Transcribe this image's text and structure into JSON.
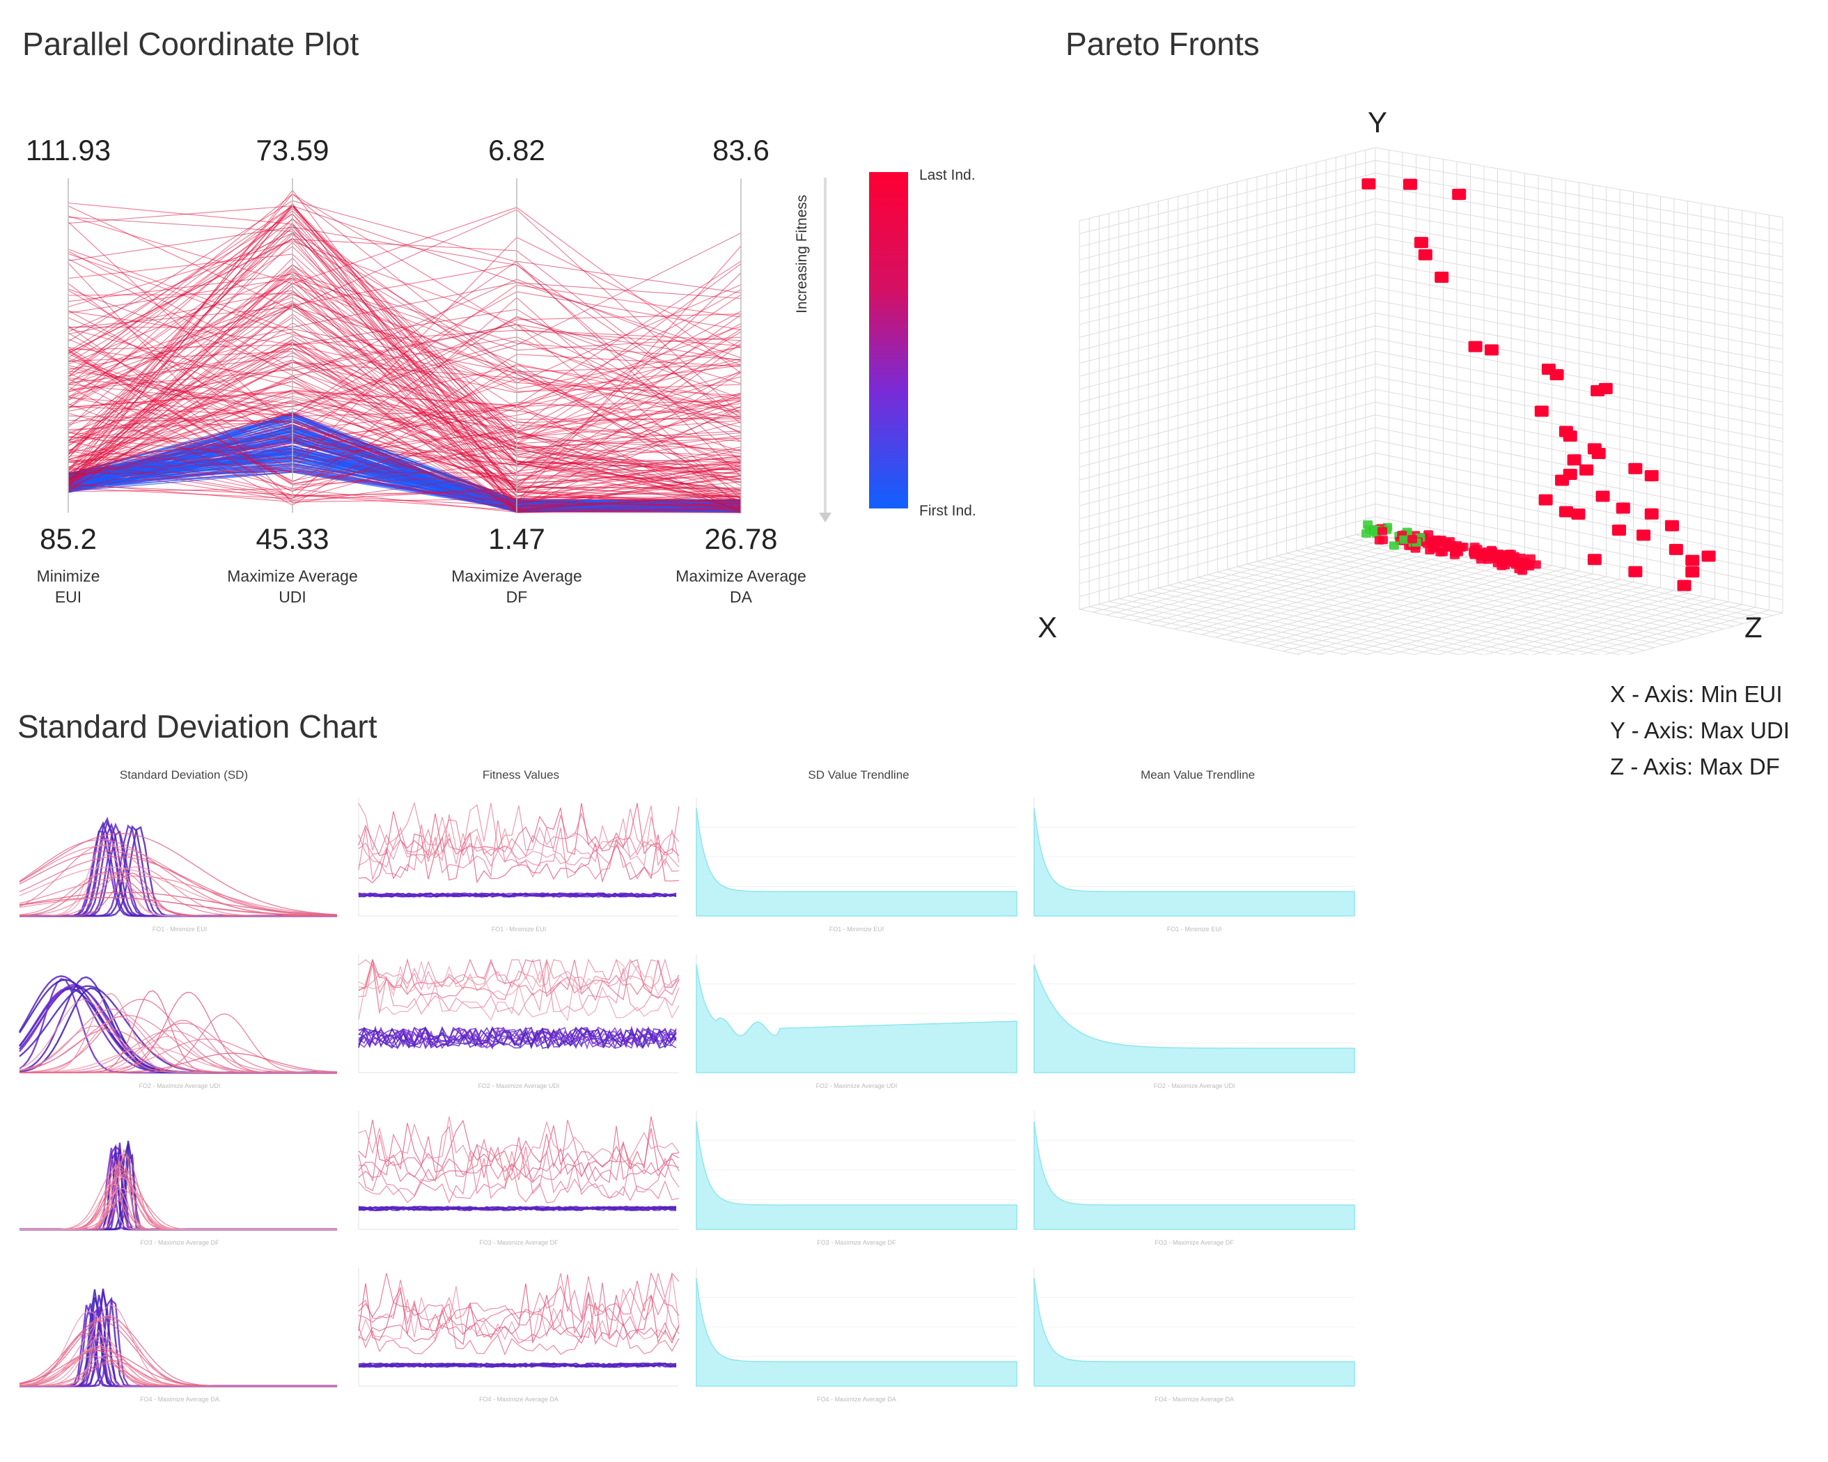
{
  "page": {
    "pcp_title": "Parallel Coordinate Plot",
    "pareto_title": "Pareto Fronts",
    "sd_title": "Standard Deviation Chart"
  },
  "colors": {
    "last": "#ff0033",
    "first": "#1060ff",
    "mid": "#7a2bd6",
    "cyan": "#bff3f7",
    "cyanLine": "#8fe6ef",
    "green": "#39d039"
  },
  "chart_data": [
    {
      "type": "line",
      "name": "parallel-coordinate",
      "title": "Parallel Coordinate Plot",
      "axes": [
        {
          "max": "111.93",
          "min": "85.2",
          "label_1": "Minimize",
          "label_2": "EUI"
        },
        {
          "max": "73.59",
          "min": "45.33",
          "label_1": "Maximize Average",
          "label_2": "UDI"
        },
        {
          "max": "6.82",
          "min": "1.47",
          "label_1": "Maximize Average",
          "label_2": "DF"
        },
        {
          "max": "83.6",
          "min": "26.78",
          "label_1": "Maximize Average",
          "label_2": "DA"
        }
      ],
      "colorbar": {
        "top_label": "Last Ind.",
        "bottom_label": "First Ind.",
        "arrow_label": "Increasing Fitness"
      }
    },
    {
      "type": "scatter",
      "name": "pareto-fronts",
      "title": "Pareto Fronts",
      "axis_labels": {
        "x": "X",
        "y": "Y",
        "z": "Z"
      },
      "legend": [
        "X - Axis: Min EUI",
        "Y - Axis: Max UDI",
        "Z - Axis: Max DF"
      ]
    },
    {
      "type": "line",
      "name": "standard-deviation-chart",
      "title": "Standard Deviation Chart",
      "column_titles": [
        "Standard Deviation (SD)",
        "Fitness Values",
        "SD Value Trendline",
        "Mean Value Trendline"
      ],
      "rows": [
        {
          "objective": "FO1 - Minimize EUI"
        },
        {
          "objective": "FO2 - Maximize Average UDI"
        },
        {
          "objective": "FO3 - Maximize Average DF"
        },
        {
          "objective": "FO4 - Maximize Average DA"
        }
      ]
    }
  ]
}
